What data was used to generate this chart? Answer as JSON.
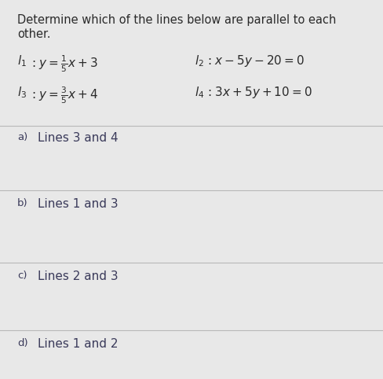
{
  "title_line1": "Determine which of the lines below are parallel to each",
  "title_line2": "other.",
  "bg_color": "#e8e8e8",
  "text_color": "#2a2a2a",
  "option_text_color": "#3a3a5a",
  "divider_color": "#b8b8b8",
  "title_fontsize": 10.5,
  "eq_fontsize": 11,
  "option_fontsize": 11,
  "label_fontsize": 9.5,
  "option_a_label": "a)",
  "option_a_text": "Lines 3 and 4",
  "option_b_label": "b)",
  "option_b_text": "Lines 1 and 3",
  "option_c_label": "c)",
  "option_c_text": "Lines 2 and 3",
  "option_d_label": "d)",
  "option_d_text": "Lines 1 and 2"
}
